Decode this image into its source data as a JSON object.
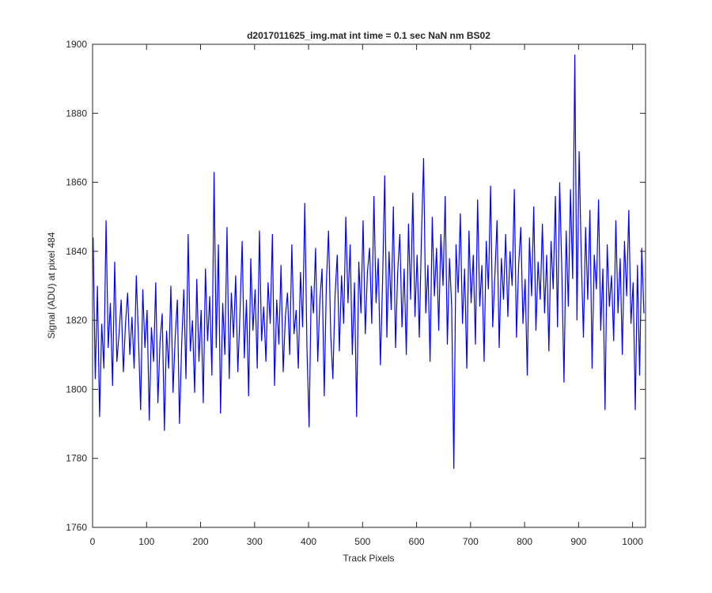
{
  "chart_data": {
    "type": "line",
    "title": "d2017011625_img.mat int time = 0.1 sec  NaN nm BS02",
    "xlabel": "Track Pixels",
    "ylabel": "Signal (ADU) at pixel 484",
    "xlim": [
      0,
      1024
    ],
    "ylim": [
      1760,
      1900
    ],
    "xticks": [
      0,
      100,
      200,
      300,
      400,
      500,
      600,
      700,
      800,
      900,
      1000
    ],
    "yticks": [
      1760,
      1780,
      1800,
      1820,
      1840,
      1860,
      1880,
      1900
    ],
    "grid": false,
    "x": [
      1,
      5,
      9,
      13,
      17,
      21,
      25,
      29,
      33,
      37,
      41,
      45,
      49,
      53,
      57,
      61,
      65,
      69,
      73,
      77,
      81,
      85,
      89,
      93,
      97,
      101,
      105,
      109,
      113,
      117,
      121,
      125,
      129,
      133,
      137,
      141,
      145,
      149,
      153,
      157,
      161,
      165,
      169,
      173,
      177,
      181,
      185,
      189,
      193,
      197,
      201,
      205,
      209,
      213,
      217,
      221,
      225,
      229,
      233,
      237,
      241,
      245,
      249,
      253,
      257,
      261,
      265,
      269,
      273,
      277,
      281,
      285,
      289,
      293,
      297,
      301,
      305,
      309,
      313,
      317,
      321,
      325,
      329,
      333,
      337,
      341,
      345,
      349,
      353,
      357,
      361,
      365,
      369,
      373,
      377,
      381,
      385,
      389,
      393,
      397,
      401,
      405,
      409,
      413,
      417,
      421,
      425,
      429,
      433,
      437,
      441,
      445,
      449,
      453,
      457,
      461,
      465,
      469,
      473,
      477,
      481,
      485,
      489,
      493,
      497,
      501,
      505,
      509,
      513,
      517,
      521,
      525,
      529,
      533,
      537,
      541,
      545,
      549,
      553,
      557,
      561,
      565,
      569,
      573,
      577,
      581,
      585,
      589,
      593,
      597,
      601,
      605,
      609,
      613,
      617,
      621,
      625,
      629,
      633,
      637,
      641,
      645,
      649,
      653,
      657,
      661,
      665,
      669,
      673,
      677,
      681,
      685,
      689,
      693,
      697,
      701,
      705,
      709,
      713,
      717,
      721,
      725,
      729,
      733,
      737,
      741,
      745,
      749,
      753,
      757,
      761,
      765,
      769,
      773,
      777,
      781,
      785,
      789,
      793,
      797,
      801,
      805,
      809,
      813,
      817,
      821,
      825,
      829,
      833,
      837,
      841,
      845,
      849,
      853,
      857,
      861,
      865,
      869,
      873,
      877,
      881,
      885,
      889,
      893,
      897,
      901,
      905,
      909,
      913,
      917,
      921,
      925,
      929,
      933,
      937,
      941,
      945,
      949,
      953,
      957,
      961,
      965,
      969,
      973,
      977,
      981,
      985,
      989,
      993,
      997,
      1001,
      1005,
      1009,
      1013,
      1017,
      1021
    ],
    "series": [
      {
        "color": "#0000ff",
        "values": [
          1844,
          1803,
          1830,
          1792,
          1819,
          1806,
          1849,
          1812,
          1825,
          1801,
          1837,
          1808,
          1816,
          1826,
          1805,
          1819,
          1828,
          1810,
          1821,
          1806,
          1833,
          1815,
          1794,
          1829,
          1812,
          1823,
          1791,
          1818,
          1808,
          1831,
          1796,
          1814,
          1822,
          1788,
          1817,
          1806,
          1830,
          1799,
          1815,
          1826,
          1790,
          1813,
          1829,
          1803,
          1845,
          1811,
          1820,
          1799,
          1832,
          1808,
          1823,
          1796,
          1835,
          1814,
          1827,
          1804,
          1863,
          1812,
          1842,
          1793,
          1825,
          1810,
          1847,
          1803,
          1828,
          1815,
          1833,
          1805,
          1822,
          1843,
          1809,
          1826,
          1798,
          1838,
          1817,
          1829,
          1806,
          1846,
          1814,
          1824,
          1808,
          1831,
          1819,
          1845,
          1801,
          1826,
          1813,
          1836,
          1805,
          1821,
          1828,
          1810,
          1842,
          1816,
          1823,
          1806,
          1834,
          1818,
          1854,
          1812,
          1789,
          1830,
          1822,
          1841,
          1808,
          1826,
          1835,
          1798,
          1831,
          1846,
          1816,
          1803,
          1827,
          1839,
          1811,
          1833,
          1819,
          1850,
          1825,
          1842,
          1810,
          1831,
          1792,
          1837,
          1822,
          1849,
          1816,
          1834,
          1841,
          1819,
          1856,
          1825,
          1838,
          1807,
          1831,
          1862,
          1815,
          1840,
          1823,
          1853,
          1812,
          1834,
          1845,
          1818,
          1835,
          1810,
          1848,
          1826,
          1857,
          1821,
          1839,
          1815,
          1844,
          1867,
          1822,
          1836,
          1808,
          1850,
          1827,
          1841,
          1817,
          1845,
          1830,
          1856,
          1813,
          1838,
          1824,
          1777,
          1842,
          1828,
          1851,
          1819,
          1835,
          1806,
          1846,
          1825,
          1839,
          1813,
          1855,
          1824,
          1836,
          1808,
          1843,
          1829,
          1859,
          1818,
          1833,
          1849,
          1812,
          1838,
          1826,
          1845,
          1821,
          1840,
          1830,
          1858,
          1815,
          1836,
          1847,
          1819,
          1832,
          1804,
          1844,
          1827,
          1853,
          1817,
          1837,
          1826,
          1848,
          1822,
          1839,
          1811,
          1843,
          1829,
          1856,
          1818,
          1860,
          1834,
          1802,
          1846,
          1824,
          1858,
          1832,
          1897,
          1820,
          1869,
          1838,
          1815,
          1847,
          1826,
          1852,
          1806,
          1839,
          1829,
          1855,
          1817,
          1835,
          1794,
          1842,
          1824,
          1833,
          1814,
          1849,
          1822,
          1838,
          1810,
          1843,
          1827,
          1852,
          1819,
          1831,
          1794,
          1836,
          1804,
          1841,
          1822
        ]
      }
    ]
  }
}
